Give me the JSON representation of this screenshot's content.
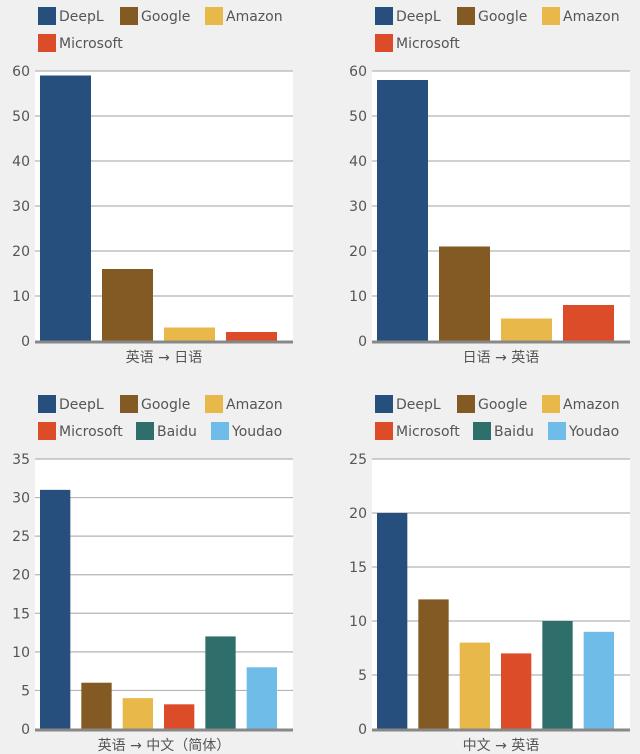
{
  "colors": {
    "DeepL": "#264f7e",
    "Google": "#845a24",
    "Amazon": "#e8b84a",
    "Microsoft": "#dc4c28",
    "Baidu": "#2e6f6b",
    "Youdao": "#6fbce9"
  },
  "chart_data": [
    {
      "type": "bar",
      "xlabel": "英语 → 日语",
      "categories": [
        "DeepL",
        "Google",
        "Amazon",
        "Microsoft"
      ],
      "values": [
        59,
        16,
        3,
        2
      ],
      "ylim": [
        0,
        60
      ],
      "yticks": [
        0,
        10,
        20,
        30,
        40,
        50,
        60
      ],
      "grid": true,
      "legend": "top"
    },
    {
      "type": "bar",
      "xlabel": "日语 → 英语",
      "categories": [
        "DeepL",
        "Google",
        "Amazon",
        "Microsoft"
      ],
      "values": [
        58,
        21,
        5,
        8
      ],
      "ylim": [
        0,
        60
      ],
      "yticks": [
        0,
        10,
        20,
        30,
        40,
        50,
        60
      ],
      "grid": true,
      "legend": "top"
    },
    {
      "type": "bar",
      "xlabel": "英语 → 中文（简体）",
      "categories": [
        "DeepL",
        "Google",
        "Amazon",
        "Microsoft",
        "Baidu",
        "Youdao"
      ],
      "values": [
        31,
        6,
        4,
        3.2,
        12,
        8
      ],
      "ylim": [
        0,
        35
      ],
      "yticks": [
        0,
        5,
        10,
        15,
        20,
        25,
        30,
        35
      ],
      "grid": true,
      "legend": "top"
    },
    {
      "type": "bar",
      "xlabel": "中文 → 英语",
      "categories": [
        "DeepL",
        "Google",
        "Amazon",
        "Microsoft",
        "Baidu",
        "Youdao"
      ],
      "values": [
        20,
        12,
        8,
        7,
        10,
        9
      ],
      "ylim": [
        0,
        25
      ],
      "yticks": [
        0,
        5,
        10,
        15,
        20,
        25
      ],
      "grid": true,
      "legend": "top"
    }
  ]
}
